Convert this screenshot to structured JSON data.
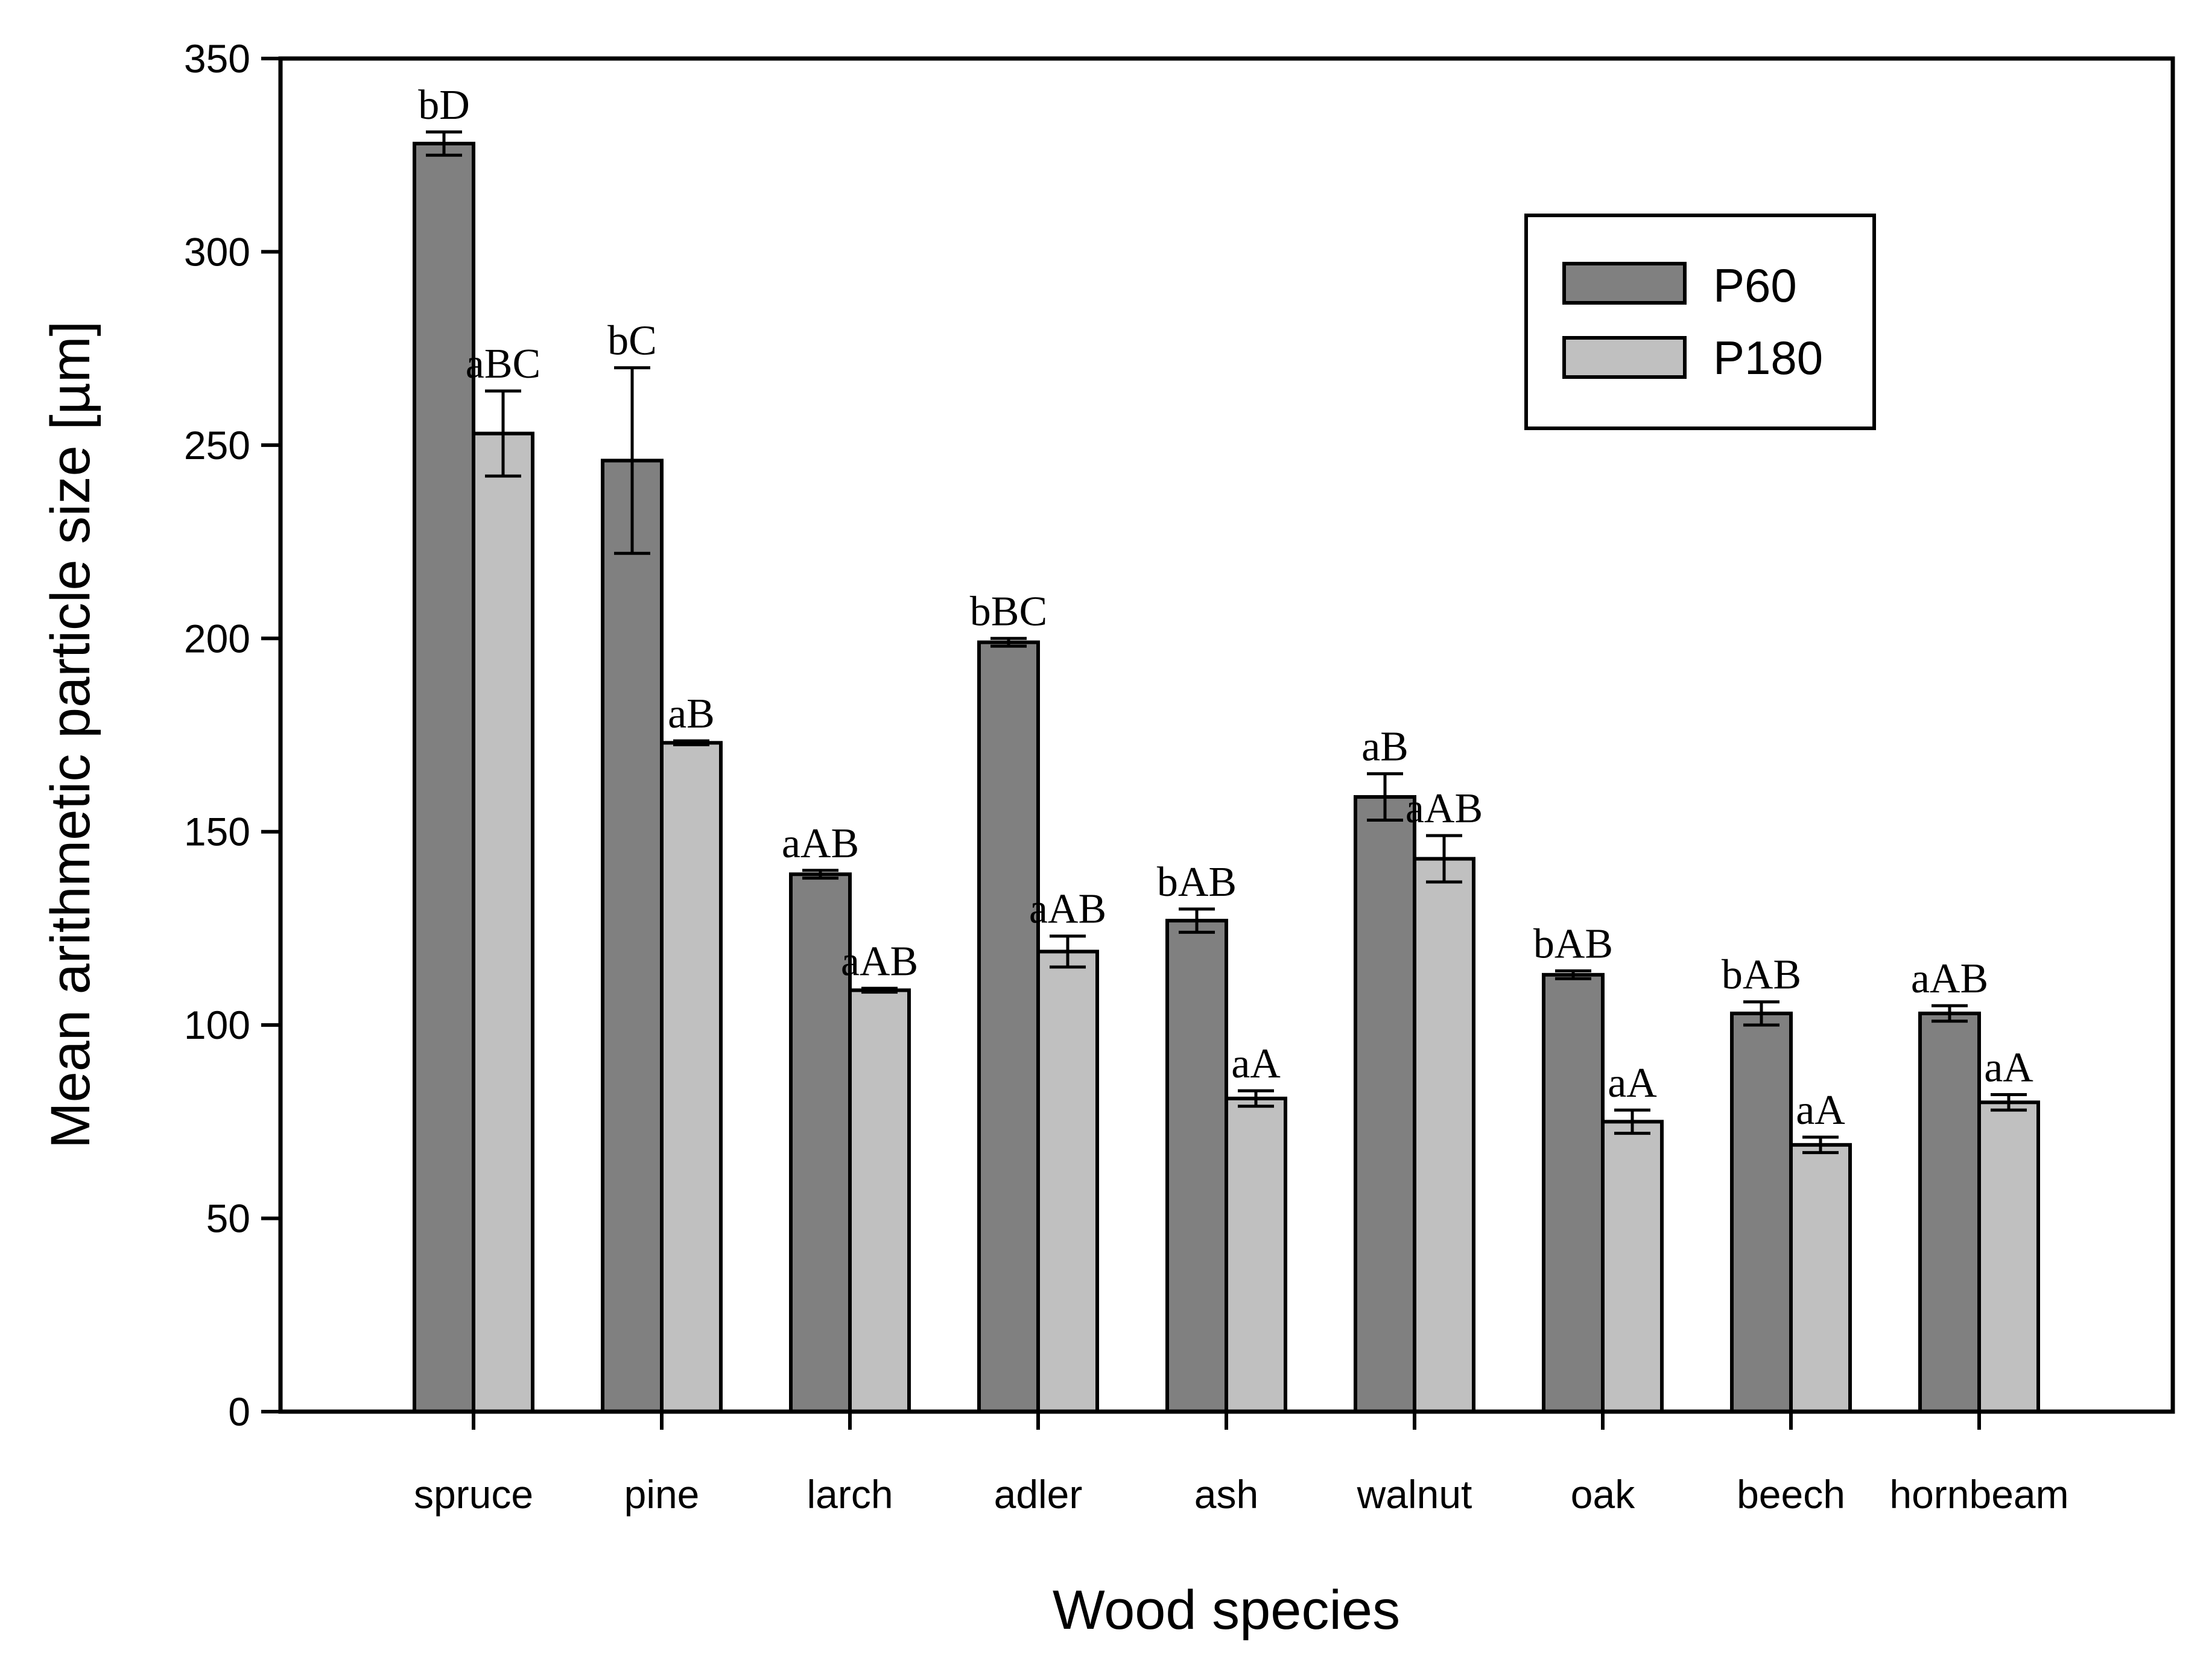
{
  "chart_data": {
    "type": "bar",
    "xlabel": "Wood species",
    "ylabel": "Mean arithmetic particle size [µm]",
    "ylim": [
      0,
      350
    ],
    "yticks": [
      0,
      50,
      100,
      150,
      200,
      250,
      300,
      350
    ],
    "grid": false,
    "legend_position": "top-right",
    "categories": [
      "spruce",
      "pine",
      "larch",
      "adler",
      "ash",
      "walnut",
      "oak",
      "beech",
      "hornbeam"
    ],
    "series": [
      {
        "name": "P60",
        "color": "#808080",
        "values": [
          328,
          246,
          139,
          199,
          127,
          159,
          113,
          103,
          103
        ],
        "errors": [
          3,
          24,
          1,
          1,
          3,
          6,
          1,
          3,
          2
        ],
        "labels": [
          "bD",
          "bC",
          "aAB",
          "bBC",
          "bAB",
          "aB",
          "bAB",
          "bAB",
          "aAB"
        ]
      },
      {
        "name": "P180",
        "color": "#c0c0c0",
        "values": [
          253,
          173,
          109,
          119,
          81,
          143,
          75,
          69,
          80
        ],
        "errors": [
          11,
          0.5,
          0.5,
          4,
          2,
          6,
          3,
          2,
          2
        ],
        "labels": [
          "aBC",
          "aB",
          "aAB",
          "aAB",
          "aA",
          "aAB",
          "aA",
          "aA",
          "aA"
        ]
      }
    ]
  }
}
